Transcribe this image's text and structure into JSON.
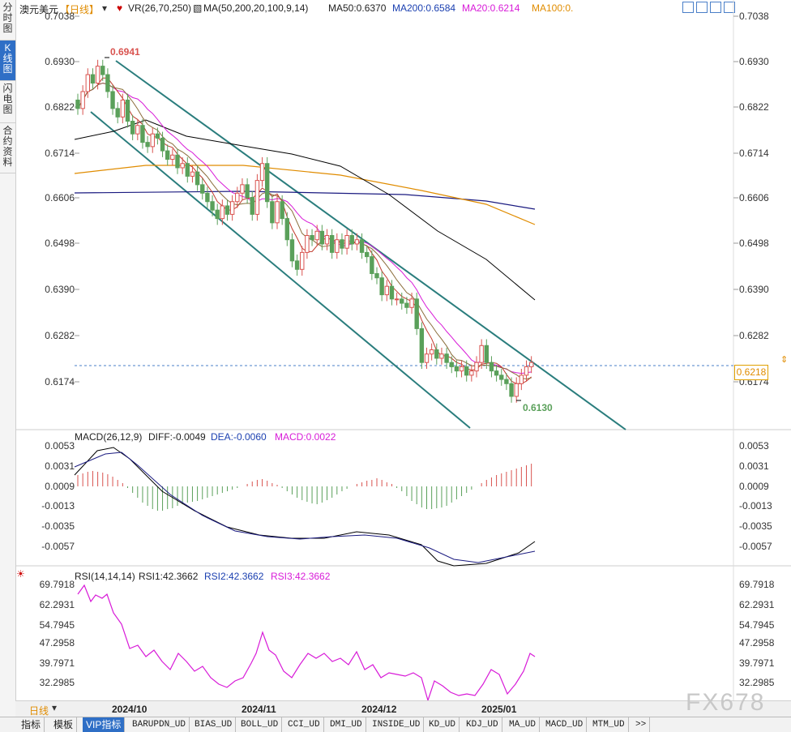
{
  "sidebar_tabs": [
    {
      "label": "分时图",
      "active": false
    },
    {
      "label": "K线图",
      "active": true
    },
    {
      "label": "闪电图",
      "active": false
    },
    {
      "label": "合约资料",
      "active": false
    }
  ],
  "header": {
    "symbol": "澳元美元",
    "period": "【日线】",
    "vr": "VR(26,70,250)",
    "ma_params": "MA(50,200,20,100,9,14)",
    "ma50": "MA50:0.6370",
    "ma200": "MA200:0.6584",
    "ma20": "MA20:0.6214",
    "ma100": "MA100:0."
  },
  "price_axis": [
    "0.7038",
    "0.6930",
    "0.6822",
    "0.6714",
    "0.6606",
    "0.6498",
    "0.6390",
    "0.6282",
    "0.6174"
  ],
  "current_price": "0.6218",
  "annotations": {
    "high": "0.6941",
    "low": "0.6130"
  },
  "macd": {
    "label": "MACD(26,12,9)",
    "diff": "DIFF:-0.0049",
    "dea": "DEA:-0.0060",
    "macd": "MACD:0.0022",
    "axis": [
      "0.0053",
      "0.0031",
      "0.0009",
      "-0.0013",
      "-0.0035",
      "-0.0057"
    ]
  },
  "rsi": {
    "label": "RSI(14,14,14)",
    "rsi1": "RSI1:42.3662",
    "rsi2": "RSI2:42.3662",
    "rsi3": "RSI3:42.3662",
    "axis": [
      "69.7918",
      "62.2931",
      "54.7945",
      "47.2958",
      "39.7971",
      "32.2985"
    ]
  },
  "dates": [
    "2024/10",
    "2024/11",
    "2024/12",
    "2025/01"
  ],
  "bottom_period": "日线",
  "indicator_tabs": [
    "指标",
    "模板",
    "VIP指标",
    "BARUPDN_UD",
    "BIAS_UD",
    "BOLL_UD",
    "CCI_UD",
    "DMI_UD",
    "INSIDE_UD",
    "KD_UD",
    "KDJ_UD",
    "MA_UD",
    "MACD_UD",
    "MTM_UD",
    ">>"
  ],
  "watermark": "FX678",
  "colors": {
    "up": "#d9534f",
    "down": "#5aa05a",
    "ma50": "#000000",
    "ma200": "#1a1a80",
    "ma20": "#d81bd8",
    "ma100": "#e08c00",
    "channel": "#2a7d7d"
  },
  "chart_data": {
    "type": "candlestick",
    "title": "澳元美元 日线",
    "ylim": [
      0.612,
      0.705
    ],
    "x": [
      "2024/10",
      "2024/11",
      "2024/12",
      "2025/01"
    ],
    "high": 0.6941,
    "low": 0.613,
    "last": 0.6218,
    "ma": {
      "MA50": 0.637,
      "MA200": 0.6584,
      "MA20": 0.6214
    }
  }
}
